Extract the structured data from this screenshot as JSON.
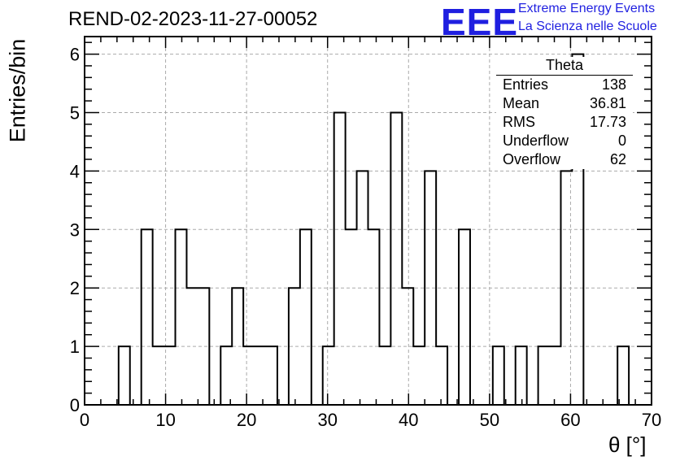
{
  "title": "REND-02-2023-11-27-00052",
  "logo": {
    "text": "EEE",
    "line1": "Extreme Energy Events",
    "line2": "La Scienza nelle Scuole",
    "color": "#1f1fe0"
  },
  "stats": {
    "name": "Theta",
    "rows": [
      {
        "label": "Entries",
        "value": "138"
      },
      {
        "label": "Mean",
        "value": "36.81"
      },
      {
        "label": "RMS",
        "value": "17.73"
      },
      {
        "label": "Underflow",
        "value": "0"
      },
      {
        "label": "Overflow",
        "value": "62"
      }
    ]
  },
  "chart_data": {
    "type": "bar",
    "histogram": true,
    "xlabel": "θ [°]",
    "ylabel": "Entries/bin",
    "xlim": [
      0,
      70
    ],
    "ylim": [
      0,
      6.3
    ],
    "bin_width": 1.4,
    "bin_edges_start": 0,
    "values": [
      0,
      0,
      0,
      1,
      0,
      3,
      1,
      1,
      3,
      2,
      2,
      0,
      1,
      2,
      1,
      1,
      1,
      0,
      2,
      3,
      0,
      1,
      5,
      3,
      4,
      3,
      1,
      5,
      2,
      1,
      4,
      1,
      0,
      3,
      0,
      0,
      1,
      0,
      1,
      0,
      1,
      1,
      4,
      6,
      0,
      0,
      0,
      1,
      0
    ],
    "xticks": [
      0,
      10,
      20,
      30,
      40,
      50,
      60,
      70
    ],
    "yticks": [
      0,
      1,
      2,
      3,
      4,
      5,
      6
    ],
    "grid": true,
    "line_color": "#000000"
  }
}
